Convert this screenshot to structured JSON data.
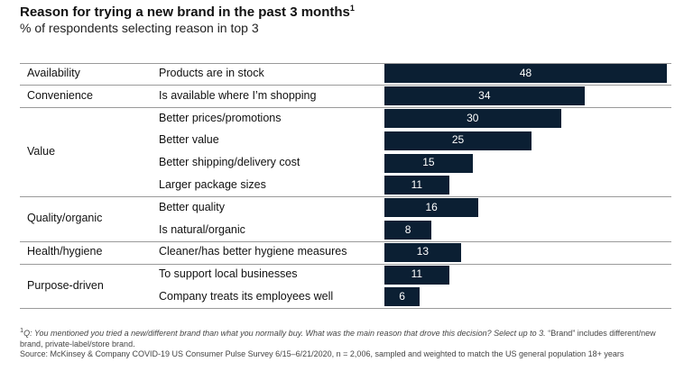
{
  "title": "Reason for trying a new brand in the past 3 months",
  "title_marker": "1",
  "subtitle": "% of respondents selecting reason in top 3",
  "chart_data": {
    "type": "bar",
    "orientation": "horizontal",
    "title": "Reason for trying a new brand in the past 3 months",
    "subtitle": "% of respondents selecting reason in top 3",
    "xlim": [
      0,
      48
    ],
    "groups": [
      {
        "name": "Availability",
        "items": [
          {
            "label": "Products are in stock",
            "value": 48
          }
        ]
      },
      {
        "name": "Convenience",
        "items": [
          {
            "label": "Is available where I’m shopping",
            "value": 34
          }
        ]
      },
      {
        "name": "Value",
        "items": [
          {
            "label": "Better prices/promotions",
            "value": 30
          },
          {
            "label": "Better value",
            "value": 25
          },
          {
            "label": "Better shipping/delivery cost",
            "value": 15
          },
          {
            "label": "Larger package sizes",
            "value": 11
          }
        ]
      },
      {
        "name": "Quality/organic",
        "items": [
          {
            "label": "Better quality",
            "value": 16
          },
          {
            "label": "Is natural/organic",
            "value": 8
          }
        ]
      },
      {
        "name": "Health/hygiene",
        "items": [
          {
            "label": "Cleaner/has better hygiene measures",
            "value": 13
          }
        ]
      },
      {
        "name": "Purpose-driven",
        "items": [
          {
            "label": "To support local businesses",
            "value": 11
          },
          {
            "label": "Company treats its employees well",
            "value": 6
          }
        ]
      }
    ],
    "bar_color": "#0b1f33"
  },
  "footnote": {
    "marker": "1",
    "question": "Q: You mentioned you tried a new/different brand than what you normally buy. What was the main reason that drove this decision? Select up to 3.",
    "note": "“Brand” includes different/new brand, private-label/store brand.",
    "source": "Source: McKinsey & Company COVID-19 US Consumer Pulse Survey 6/15–6/21/2020, n = 2,006, sampled and weighted to match the US general population 18+ years"
  }
}
